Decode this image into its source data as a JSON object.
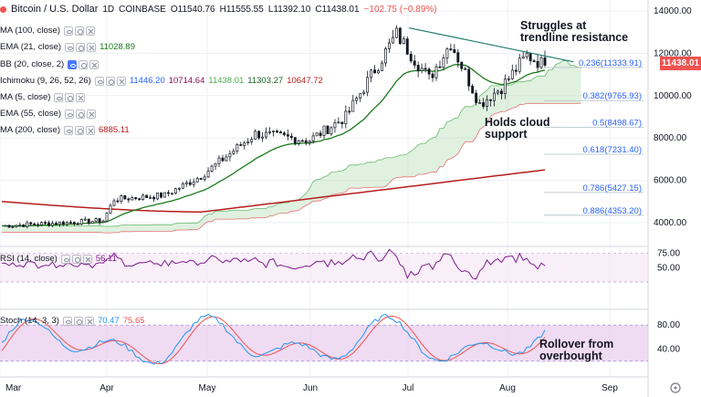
{
  "header": {
    "symbol": "Bitcoin / U.S. Dollar",
    "interval": "1D",
    "exchange": "COINBASE",
    "open": "O11540.76",
    "high": "H11555.55",
    "low": "L11392.10",
    "close": "C11438.01",
    "change": "−102.75 (−0.89%)"
  },
  "indicators": [
    {
      "id": "ma100",
      "name": "MA (100, close)",
      "values": [],
      "active": false
    },
    {
      "id": "ema21",
      "name": "EMA (21, close)",
      "values": [
        {
          "text": "11028.89",
          "color": "#1b7a1b"
        }
      ],
      "active": false
    },
    {
      "id": "bb",
      "name": "BB (20, close, 2)",
      "values": [],
      "active": true
    },
    {
      "id": "ichimoku",
      "name": "Ichimoku (9, 26, 52, 26)",
      "values": [
        {
          "text": "11446.20",
          "color": "#2962ff"
        },
        {
          "text": "10714.64",
          "color": "#880e4f"
        },
        {
          "text": "11438.01",
          "color": "#4caf50"
        },
        {
          "text": "11303.27",
          "color": "#1b5e20"
        },
        {
          "text": "10647.72",
          "color": "#b71c1c"
        }
      ],
      "active": false
    },
    {
      "id": "ma5",
      "name": "MA (5, close)",
      "values": [],
      "active": false
    },
    {
      "id": "ema55",
      "name": "EMA (55, close)",
      "values": [],
      "active": false
    },
    {
      "id": "ma200",
      "name": "MA (200, close)",
      "values": [
        {
          "text": "6885.11",
          "color": "#b71c1c"
        }
      ],
      "active": false
    }
  ],
  "rsi_legend": {
    "name": "RSI (14, close)",
    "value": "56.11"
  },
  "stoch_legend": {
    "name": "Stoch (14, 3, 3)",
    "k": "70.47",
    "d": "75.65"
  },
  "annotations": {
    "resistance": [
      "Struggles at",
      "trendline resistance"
    ],
    "support": [
      "Holds cloud",
      "support"
    ],
    "rollover": [
      "Rollover from",
      "overbought"
    ]
  },
  "last_price": "11438.01",
  "colors": {
    "up": "#26a69a",
    "down": "#ef5350",
    "candle": "#131722",
    "ema21": "#1b7a1b",
    "ma200": "#b71c1c",
    "cloud_green": "#a5d6a7",
    "cloud_red": "#ef9a9a",
    "fib": "#2962ff",
    "trendline": "#1e7a6e",
    "rsi": "#7e1b8e",
    "stoch_k": "#2196f3",
    "stoch_d": "#ef5350",
    "osc_band": "#e1bee7"
  },
  "chart_data": {
    "type": "candlestick",
    "y_ticks": [
      "14000.00",
      "12000.00",
      "10000.00",
      "8000.00",
      "6000.00",
      "4000.00"
    ],
    "ylim": [
      3500,
      14400
    ],
    "x_ticks": [
      "Mar",
      "Apr",
      "May",
      "Jun",
      "Jul",
      "Aug",
      "Sep"
    ],
    "rsi_ticks": [
      "75.00",
      "50.00"
    ],
    "stoch_ticks": [
      "80.00",
      "40.00"
    ],
    "fib_levels": [
      {
        "label": "0.236(11333.91)",
        "value": 11333.91
      },
      {
        "label": "0.382(9765.93)",
        "value": 9765.93
      },
      {
        "label": "0.5(8498.67)",
        "value": 8498.67
      },
      {
        "label": "0.618(7231.40)",
        "value": 7231.4
      },
      {
        "label": "0.786(5427.15)",
        "value": 5427.15
      },
      {
        "label": "0.886(4353.20)",
        "value": 4353.2
      }
    ],
    "close_path": [
      {
        "month": "Mar",
        "price": 3850
      },
      {
        "month": "Apr",
        "price": 4100
      },
      {
        "month": "Apr",
        "price": 5100
      },
      {
        "month": "May",
        "price": 5300
      },
      {
        "month": "May",
        "price": 6200
      },
      {
        "month": "May",
        "price": 8200
      },
      {
        "month": "Jun",
        "price": 7900
      },
      {
        "month": "Jun",
        "price": 9000
      },
      {
        "month": "Jun",
        "price": 12900
      },
      {
        "month": "Jul",
        "price": 10800
      },
      {
        "month": "Jul",
        "price": 12500
      },
      {
        "month": "Jul",
        "price": 9600
      },
      {
        "month": "Aug",
        "price": 10400
      },
      {
        "month": "Aug",
        "price": 11900
      },
      {
        "month": "Aug",
        "price": 11438
      }
    ]
  }
}
